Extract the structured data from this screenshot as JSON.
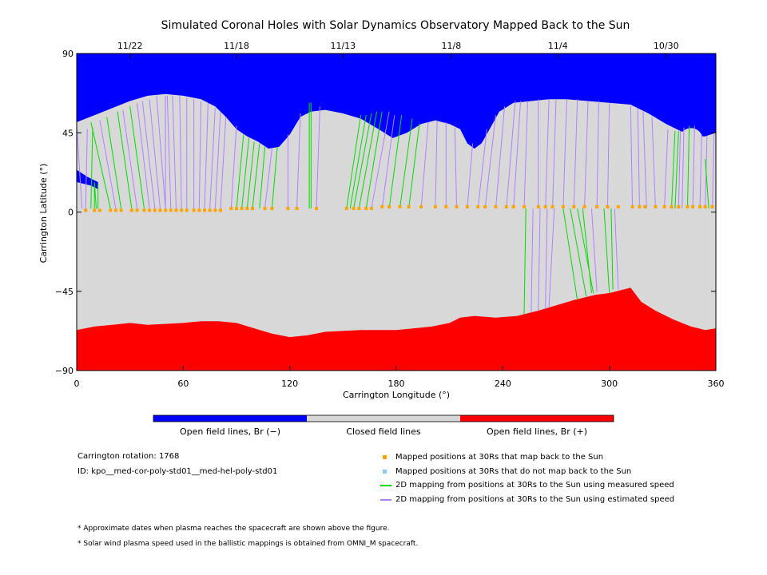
{
  "chart_data": {
    "type": "map",
    "title": "Simulated Coronal Holes with Solar Dynamics Observatory Mapped Back to the Sun",
    "xlabel": "Carrington Longitude (°)",
    "ylabel": "Carrington Latitude (°)",
    "xlim": [
      0,
      360
    ],
    "ylim": [
      -90,
      90
    ],
    "x_ticks": [
      "0",
      "60",
      "120",
      "180",
      "240",
      "300",
      "360"
    ],
    "y_ticks": [
      "90",
      "45",
      "0",
      "−45",
      "−90"
    ],
    "y_tick_values": [
      90,
      45,
      0,
      -45,
      -90
    ],
    "x_tick_values": [
      0,
      60,
      120,
      180,
      240,
      300,
      360
    ],
    "top_date_ticks": [
      {
        "label": "11/22",
        "lon": 30
      },
      {
        "label": "11/18",
        "lon": 90
      },
      {
        "label": "11/13",
        "lon": 150
      },
      {
        "label": "11/8",
        "lon": 211
      },
      {
        "label": "11/4",
        "lon": 271
      },
      {
        "label": "10/30",
        "lon": 332
      }
    ],
    "colors": {
      "open_negative": "#0000ff",
      "closed": "#d8d8d8",
      "open_positive": "#ff0000",
      "mapped": "#ffa500",
      "unmapped": "#87cefa",
      "measured": "#00dd00",
      "estimated": "#b080ff"
    },
    "north_boundary": [
      [
        0,
        51
      ],
      [
        10,
        55
      ],
      [
        20,
        59
      ],
      [
        30,
        63
      ],
      [
        40,
        66
      ],
      [
        50,
        67
      ],
      [
        60,
        66
      ],
      [
        70,
        64
      ],
      [
        78,
        60
      ],
      [
        84,
        54
      ],
      [
        90,
        47
      ],
      [
        96,
        43
      ],
      [
        102,
        40
      ],
      [
        108,
        36
      ],
      [
        114,
        37
      ],
      [
        120,
        44
      ],
      [
        126,
        54
      ],
      [
        132,
        57
      ],
      [
        140,
        58
      ],
      [
        150,
        56
      ],
      [
        160,
        53
      ],
      [
        170,
        47
      ],
      [
        178,
        42
      ],
      [
        186,
        45
      ],
      [
        194,
        50
      ],
      [
        202,
        52
      ],
      [
        210,
        50
      ],
      [
        216,
        47
      ],
      [
        220,
        39
      ],
      [
        224,
        36
      ],
      [
        228,
        39
      ],
      [
        232,
        46
      ],
      [
        238,
        57
      ],
      [
        246,
        62
      ],
      [
        256,
        63
      ],
      [
        266,
        64
      ],
      [
        276,
        64
      ],
      [
        288,
        63
      ],
      [
        300,
        62
      ],
      [
        312,
        61
      ],
      [
        322,
        56
      ],
      [
        332,
        50
      ],
      [
        340,
        46
      ],
      [
        348,
        43
      ],
      [
        354,
        43
      ],
      [
        360,
        45
      ]
    ],
    "south_boundary": [
      [
        0,
        -67
      ],
      [
        10,
        -65
      ],
      [
        20,
        -64
      ],
      [
        30,
        -63
      ],
      [
        40,
        -64
      ],
      [
        60,
        -63
      ],
      [
        70,
        -62
      ],
      [
        80,
        -62
      ],
      [
        90,
        -63
      ],
      [
        100,
        -66
      ],
      [
        110,
        -69
      ],
      [
        120,
        -71
      ],
      [
        130,
        -70
      ],
      [
        140,
        -68
      ],
      [
        160,
        -67
      ],
      [
        180,
        -67
      ],
      [
        200,
        -65
      ],
      [
        210,
        -63
      ],
      [
        216,
        -60
      ],
      [
        224,
        -59
      ],
      [
        236,
        -60
      ],
      [
        248,
        -59
      ],
      [
        260,
        -56
      ],
      [
        270,
        -53
      ],
      [
        280,
        -50
      ],
      [
        292,
        -47
      ],
      [
        300,
        -46
      ],
      [
        308,
        -44
      ],
      [
        312,
        -43
      ],
      [
        318,
        -51
      ],
      [
        326,
        -56
      ],
      [
        336,
        -61
      ],
      [
        346,
        -65
      ],
      [
        354,
        -67
      ],
      [
        360,
        -66
      ]
    ],
    "polar_islands": [
      {
        "lon": 346,
        "lat": 41,
        "r": 3.5
      }
    ],
    "mapped_points_lat": [
      1,
      1,
      1,
      1,
      1,
      1,
      1,
      1,
      1,
      1,
      1,
      1,
      1,
      1,
      1,
      1,
      1,
      1,
      1,
      1,
      1,
      1,
      1,
      2,
      2,
      2,
      2,
      2,
      2,
      2,
      2,
      2,
      2,
      2,
      2,
      2,
      2,
      2,
      3,
      3,
      3,
      3,
      3,
      3,
      3,
      3,
      3,
      3,
      3,
      3,
      3,
      3,
      3,
      3,
      3,
      3,
      3,
      3,
      3,
      3,
      3,
      3,
      3
    ],
    "mapped_points_lon": [
      5,
      10,
      13,
      19,
      22,
      25,
      31,
      34,
      38,
      41,
      44,
      47,
      50,
      53,
      56,
      59,
      62,
      66,
      69,
      72,
      75,
      78,
      81,
      87,
      90,
      93,
      96,
      99,
      106,
      110,
      119,
      124,
      135,
      152,
      156,
      159,
      163,
      166,
      172,
      176,
      182,
      187,
      194,
      202,
      208,
      214,
      220,
      226,
      230,
      236,
      242,
      246,
      252,
      260,
      264,
      268,
      274,
      280,
      286,
      293,
      299,
      305,
      313
    ],
    "mapped_points_lon2": [
      317,
      320,
      326,
      331,
      335,
      339,
      344,
      347,
      351,
      354,
      358
    ],
    "series": [
      {
        "name": "Mapped positions at 30Rs that map back to the Sun"
      },
      {
        "name": "Mapped positions at 30Rs that do not map back to the Sun"
      },
      {
        "name": "2D mapping from positions at 30Rs to the Sun using measured speed"
      },
      {
        "name": "2D mapping from positions at 30Rs to the Sun using estimated speed"
      }
    ],
    "mapping_lines": [
      {
        "x0": 3,
        "y0": 2,
        "x1": 0,
        "y1": 49,
        "k": "e"
      },
      {
        "x0": 5,
        "y0": 2,
        "x1": 6,
        "y1": 47,
        "k": "e"
      },
      {
        "x0": 8,
        "y0": 2,
        "x1": 9,
        "y1": 48,
        "k": "m"
      },
      {
        "x0": 10,
        "y0": 2,
        "x1": 10,
        "y1": 16,
        "k": "m"
      },
      {
        "x0": 11,
        "y0": 2,
        "x1": 10,
        "y1": 17,
        "k": "m"
      },
      {
        "x0": 12,
        "y0": 2,
        "x1": 12,
        "y1": 16,
        "k": "m"
      },
      {
        "x0": 19,
        "y0": 2,
        "x1": 8,
        "y1": 51,
        "k": "m"
      },
      {
        "x0": 22,
        "y0": 2,
        "x1": 13,
        "y1": 52,
        "k": "e"
      },
      {
        "x0": 25,
        "y0": 2,
        "x1": 17,
        "y1": 54,
        "k": "m"
      },
      {
        "x0": 31,
        "y0": 2,
        "x1": 23,
        "y1": 57,
        "k": "m"
      },
      {
        "x0": 34,
        "y0": 2,
        "x1": 26,
        "y1": 58,
        "k": "e"
      },
      {
        "x0": 38,
        "y0": 2,
        "x1": 30,
        "y1": 60,
        "k": "m"
      },
      {
        "x0": 41,
        "y0": 2,
        "x1": 34,
        "y1": 62,
        "k": "e"
      },
      {
        "x0": 44,
        "y0": 2,
        "x1": 37,
        "y1": 63,
        "k": "e"
      },
      {
        "x0": 47,
        "y0": 2,
        "x1": 41,
        "y1": 64,
        "k": "e"
      },
      {
        "x0": 50,
        "y0": 2,
        "x1": 45,
        "y1": 66,
        "k": "e"
      },
      {
        "x0": 50,
        "y0": 2,
        "x1": 50,
        "y1": 66,
        "k": "e"
      },
      {
        "x0": 53,
        "y0": 2,
        "x1": 51,
        "y1": 66,
        "k": "e"
      },
      {
        "x0": 56,
        "y0": 2,
        "x1": 54,
        "y1": 66,
        "k": "e"
      },
      {
        "x0": 59,
        "y0": 2,
        "x1": 58,
        "y1": 66,
        "k": "e"
      },
      {
        "x0": 62,
        "y0": 2,
        "x1": 62,
        "y1": 65,
        "k": "e"
      },
      {
        "x0": 66,
        "y0": 2,
        "x1": 66,
        "y1": 64,
        "k": "e"
      },
      {
        "x0": 69,
        "y0": 2,
        "x1": 70,
        "y1": 63,
        "k": "e"
      },
      {
        "x0": 72,
        "y0": 2,
        "x1": 74,
        "y1": 62,
        "k": "e"
      },
      {
        "x0": 75,
        "y0": 2,
        "x1": 78,
        "y1": 59,
        "k": "e"
      },
      {
        "x0": 78,
        "y0": 2,
        "x1": 81,
        "y1": 57,
        "k": "e"
      },
      {
        "x0": 81,
        "y0": 2,
        "x1": 84,
        "y1": 54,
        "k": "e"
      },
      {
        "x0": 87,
        "y0": 2,
        "x1": 90,
        "y1": 49,
        "k": "e"
      },
      {
        "x0": 90,
        "y0": 2,
        "x1": 94,
        "y1": 44,
        "k": "m"
      },
      {
        "x0": 93,
        "y0": 2,
        "x1": 97,
        "y1": 42,
        "k": "m"
      },
      {
        "x0": 96,
        "y0": 2,
        "x1": 100,
        "y1": 40,
        "k": "m"
      },
      {
        "x0": 99,
        "y0": 2,
        "x1": 103,
        "y1": 39,
        "k": "m"
      },
      {
        "x0": 103,
        "y0": 2,
        "x1": 106,
        "y1": 37,
        "k": "m"
      },
      {
        "x0": 106,
        "y0": 2,
        "x1": 110,
        "y1": 36,
        "k": "e"
      },
      {
        "x0": 110,
        "y0": 2,
        "x1": 113,
        "y1": 37,
        "k": "m"
      },
      {
        "x0": 119,
        "y0": 2,
        "x1": 119,
        "y1": 44,
        "k": "e"
      },
      {
        "x0": 124,
        "y0": 2,
        "x1": 126,
        "y1": 56,
        "k": "e"
      },
      {
        "x0": 131,
        "y0": 2,
        "x1": 131,
        "y1": 62,
        "k": "m"
      },
      {
        "x0": 132,
        "y0": 2,
        "x1": 132,
        "y1": 62,
        "k": "m"
      },
      {
        "x0": 135,
        "y0": 2,
        "x1": 137,
        "y1": 60,
        "k": "e"
      },
      {
        "x0": 152,
        "y0": 2,
        "x1": 160,
        "y1": 55,
        "k": "m"
      },
      {
        "x0": 154,
        "y0": 2,
        "x1": 163,
        "y1": 55,
        "k": "m"
      },
      {
        "x0": 156,
        "y0": 2,
        "x1": 166,
        "y1": 56,
        "k": "m"
      },
      {
        "x0": 159,
        "y0": 2,
        "x1": 169,
        "y1": 57,
        "k": "m"
      },
      {
        "x0": 163,
        "y0": 2,
        "x1": 172,
        "y1": 57,
        "k": "m"
      },
      {
        "x0": 166,
        "y0": 2,
        "x1": 176,
        "y1": 57,
        "k": "e"
      },
      {
        "x0": 172,
        "y0": 2,
        "x1": 179,
        "y1": 55,
        "k": "e"
      },
      {
        "x0": 176,
        "y0": 2,
        "x1": 183,
        "y1": 55,
        "k": "m"
      },
      {
        "x0": 182,
        "y0": 2,
        "x1": 189,
        "y1": 53,
        "k": "m"
      },
      {
        "x0": 187,
        "y0": 2,
        "x1": 193,
        "y1": 50,
        "k": "m"
      },
      {
        "x0": 194,
        "y0": 2,
        "x1": 198,
        "y1": 51,
        "k": "e"
      },
      {
        "x0": 202,
        "y0": 2,
        "x1": 203,
        "y1": 52,
        "k": "e"
      },
      {
        "x0": 208,
        "y0": 2,
        "x1": 208,
        "y1": 51,
        "k": "e"
      },
      {
        "x0": 214,
        "y0": 2,
        "x1": 213,
        "y1": 48,
        "k": "e"
      },
      {
        "x0": 220,
        "y0": 2,
        "x1": 223,
        "y1": 39,
        "k": "e"
      },
      {
        "x0": 226,
        "y0": 2,
        "x1": 231,
        "y1": 47,
        "k": "e"
      },
      {
        "x0": 230,
        "y0": 2,
        "x1": 236,
        "y1": 55,
        "k": "e"
      },
      {
        "x0": 236,
        "y0": 2,
        "x1": 241,
        "y1": 60,
        "k": "e"
      },
      {
        "x0": 242,
        "y0": 2,
        "x1": 247,
        "y1": 63,
        "k": "e"
      },
      {
        "x0": 246,
        "y0": 2,
        "x1": 250,
        "y1": 63,
        "k": "e"
      },
      {
        "x0": 252,
        "y0": 2,
        "x1": 254,
        "y1": 63,
        "k": "e"
      },
      {
        "x0": 260,
        "y0": 2,
        "x1": 260,
        "y1": 64,
        "k": "e"
      },
      {
        "x0": 264,
        "y0": 2,
        "x1": 266,
        "y1": 64,
        "k": "e"
      },
      {
        "x0": 268,
        "y0": 2,
        "x1": 270,
        "y1": 64,
        "k": "e"
      },
      {
        "x0": 274,
        "y0": 2,
        "x1": 276,
        "y1": 64,
        "k": "e"
      },
      {
        "x0": 280,
        "y0": 2,
        "x1": 282,
        "y1": 64,
        "k": "e"
      },
      {
        "x0": 286,
        "y0": 2,
        "x1": 288,
        "y1": 63,
        "k": "e"
      },
      {
        "x0": 293,
        "y0": 2,
        "x1": 294,
        "y1": 63,
        "k": "e"
      },
      {
        "x0": 299,
        "y0": 2,
        "x1": 300,
        "y1": 62,
        "k": "e"
      },
      {
        "x0": 313,
        "y0": 2,
        "x1": 312,
        "y1": 60,
        "k": "e"
      },
      {
        "x0": 317,
        "y0": 2,
        "x1": 316,
        "y1": 59,
        "k": "e"
      },
      {
        "x0": 321,
        "y0": 2,
        "x1": 319,
        "y1": 57,
        "k": "e"
      },
      {
        "x0": 326,
        "y0": 2,
        "x1": 324,
        "y1": 54,
        "k": "e"
      },
      {
        "x0": 331,
        "y0": 2,
        "x1": 333,
        "y1": 47,
        "k": "e"
      },
      {
        "x0": 335,
        "y0": 2,
        "x1": 337,
        "y1": 46,
        "k": "m"
      },
      {
        "x0": 337,
        "y0": 2,
        "x1": 339,
        "y1": 46,
        "k": "m"
      },
      {
        "x0": 339,
        "y0": 2,
        "x1": 340,
        "y1": 46,
        "k": "e"
      },
      {
        "x0": 341,
        "y0": 2,
        "x1": 342,
        "y1": 48,
        "k": "e"
      },
      {
        "x0": 344,
        "y0": 2,
        "x1": 345,
        "y1": 49,
        "k": "m"
      },
      {
        "x0": 347,
        "y0": 2,
        "x1": 348,
        "y1": 49,
        "k": "e"
      },
      {
        "x0": 351,
        "y0": 2,
        "x1": 352,
        "y1": 44,
        "k": "e"
      },
      {
        "x0": 354,
        "y0": 2,
        "x1": 355,
        "y1": 43,
        "k": "e"
      },
      {
        "x0": 356,
        "y0": 2,
        "x1": 354,
        "y1": 30,
        "k": "m"
      },
      {
        "x0": 358,
        "y0": 2,
        "x1": 359,
        "y1": 45,
        "k": "e"
      },
      {
        "x0": 253,
        "y0": 2,
        "x1": 252,
        "y1": -58,
        "k": "m"
      },
      {
        "x0": 257,
        "y0": 2,
        "x1": 256,
        "y1": -57,
        "k": "e"
      },
      {
        "x0": 261,
        "y0": 2,
        "x1": 260,
        "y1": -56,
        "k": "e"
      },
      {
        "x0": 265,
        "y0": 2,
        "x1": 264,
        "y1": -55,
        "k": "e"
      },
      {
        "x0": 269,
        "y0": 2,
        "x1": 266,
        "y1": -54,
        "k": "e"
      },
      {
        "x0": 274,
        "y0": 2,
        "x1": 282,
        "y1": -50,
        "k": "m"
      },
      {
        "x0": 278,
        "y0": 2,
        "x1": 287,
        "y1": -48,
        "k": "m"
      },
      {
        "x0": 282,
        "y0": 2,
        "x1": 291,
        "y1": -46,
        "k": "m"
      },
      {
        "x0": 285,
        "y0": 2,
        "x1": 290,
        "y1": -46,
        "k": "m"
      },
      {
        "x0": 290,
        "y0": 2,
        "x1": 293,
        "y1": -45,
        "k": "e"
      },
      {
        "x0": 297,
        "y0": 2,
        "x1": 300,
        "y1": -46,
        "k": "m"
      },
      {
        "x0": 301,
        "y0": 2,
        "x1": 302,
        "y1": -44,
        "k": "m"
      },
      {
        "x0": 303,
        "y0": 2,
        "x1": 305,
        "y1": -44,
        "k": "e"
      }
    ],
    "colorbar_labels": [
      "Open field lines, Br (−)",
      "Closed field lines",
      "Open field lines, Br (+)"
    ]
  },
  "info": {
    "rotation": "Carrington rotation: 1768",
    "id": "ID: kpo__med-cor-poly-std01__med-hel-poly-std01"
  },
  "legend": {
    "mapped": "Mapped positions at 30Rs that map back to the Sun",
    "unmapped": "Mapped positions at 30Rs that do not map back to the Sun",
    "measured": "2D mapping from positions at 30Rs to the Sun using measured speed",
    "estimated": "2D mapping from positions at 30Rs to the Sun using estimated speed"
  },
  "notes": {
    "note1": "* Approximate dates when plasma reaches the spacecraft are shown above the figure.",
    "note2": "* Solar wind plasma speed used in the ballistic mappings is obtained from OMNI_M spacecraft."
  }
}
